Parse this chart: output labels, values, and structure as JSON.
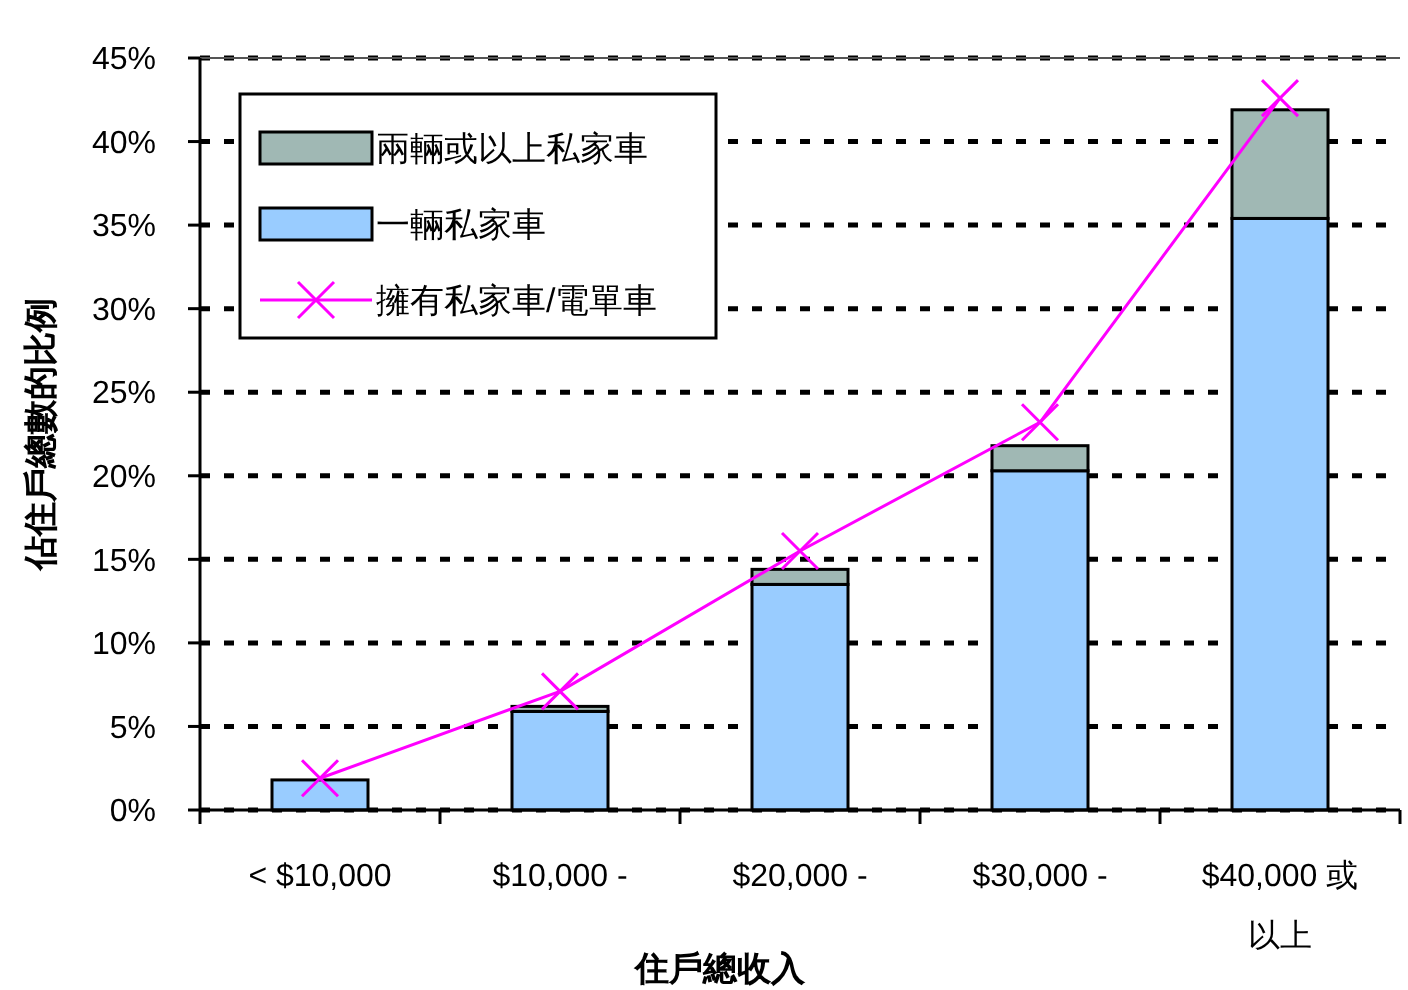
{
  "chart_data": {
    "type": "bar",
    "stacked": true,
    "xlabel": "住戶總收入",
    "ylabel": "佔住戶總數的比例",
    "categories": [
      "< $10,000",
      "$10,000 -",
      "$20,000 -",
      "$30,000 -",
      "$40,000 或以上"
    ],
    "ylim": [
      0,
      45
    ],
    "yticks": [
      {
        "value": 0,
        "label": "0%"
      },
      {
        "value": 5,
        "label": "5%"
      },
      {
        "value": 10,
        "label": "10%"
      },
      {
        "value": 15,
        "label": "15%"
      },
      {
        "value": 20,
        "label": "20%"
      },
      {
        "value": 25,
        "label": "25%"
      },
      {
        "value": 30,
        "label": "30%"
      },
      {
        "value": 35,
        "label": "35%"
      },
      {
        "value": 40,
        "label": "40%"
      },
      {
        "value": 45,
        "label": "45%"
      }
    ],
    "grid": "y",
    "legend": "top left",
    "series": [
      {
        "name": "一輛私家車",
        "color": "#99ccff",
        "values": [
          1.8,
          5.9,
          13.5,
          20.3,
          35.4
        ]
      },
      {
        "name": "兩輛或以上私家車",
        "color": "#a0b8b4",
        "values": [
          0,
          0.3,
          0.9,
          1.5,
          6.5
        ]
      },
      {
        "name": "擁有私家車/電單車",
        "type": "line",
        "color": "#ff00ff",
        "marker": "cross",
        "values": [
          1.9,
          7.1,
          15.5,
          23.2,
          42.6
        ]
      }
    ]
  }
}
